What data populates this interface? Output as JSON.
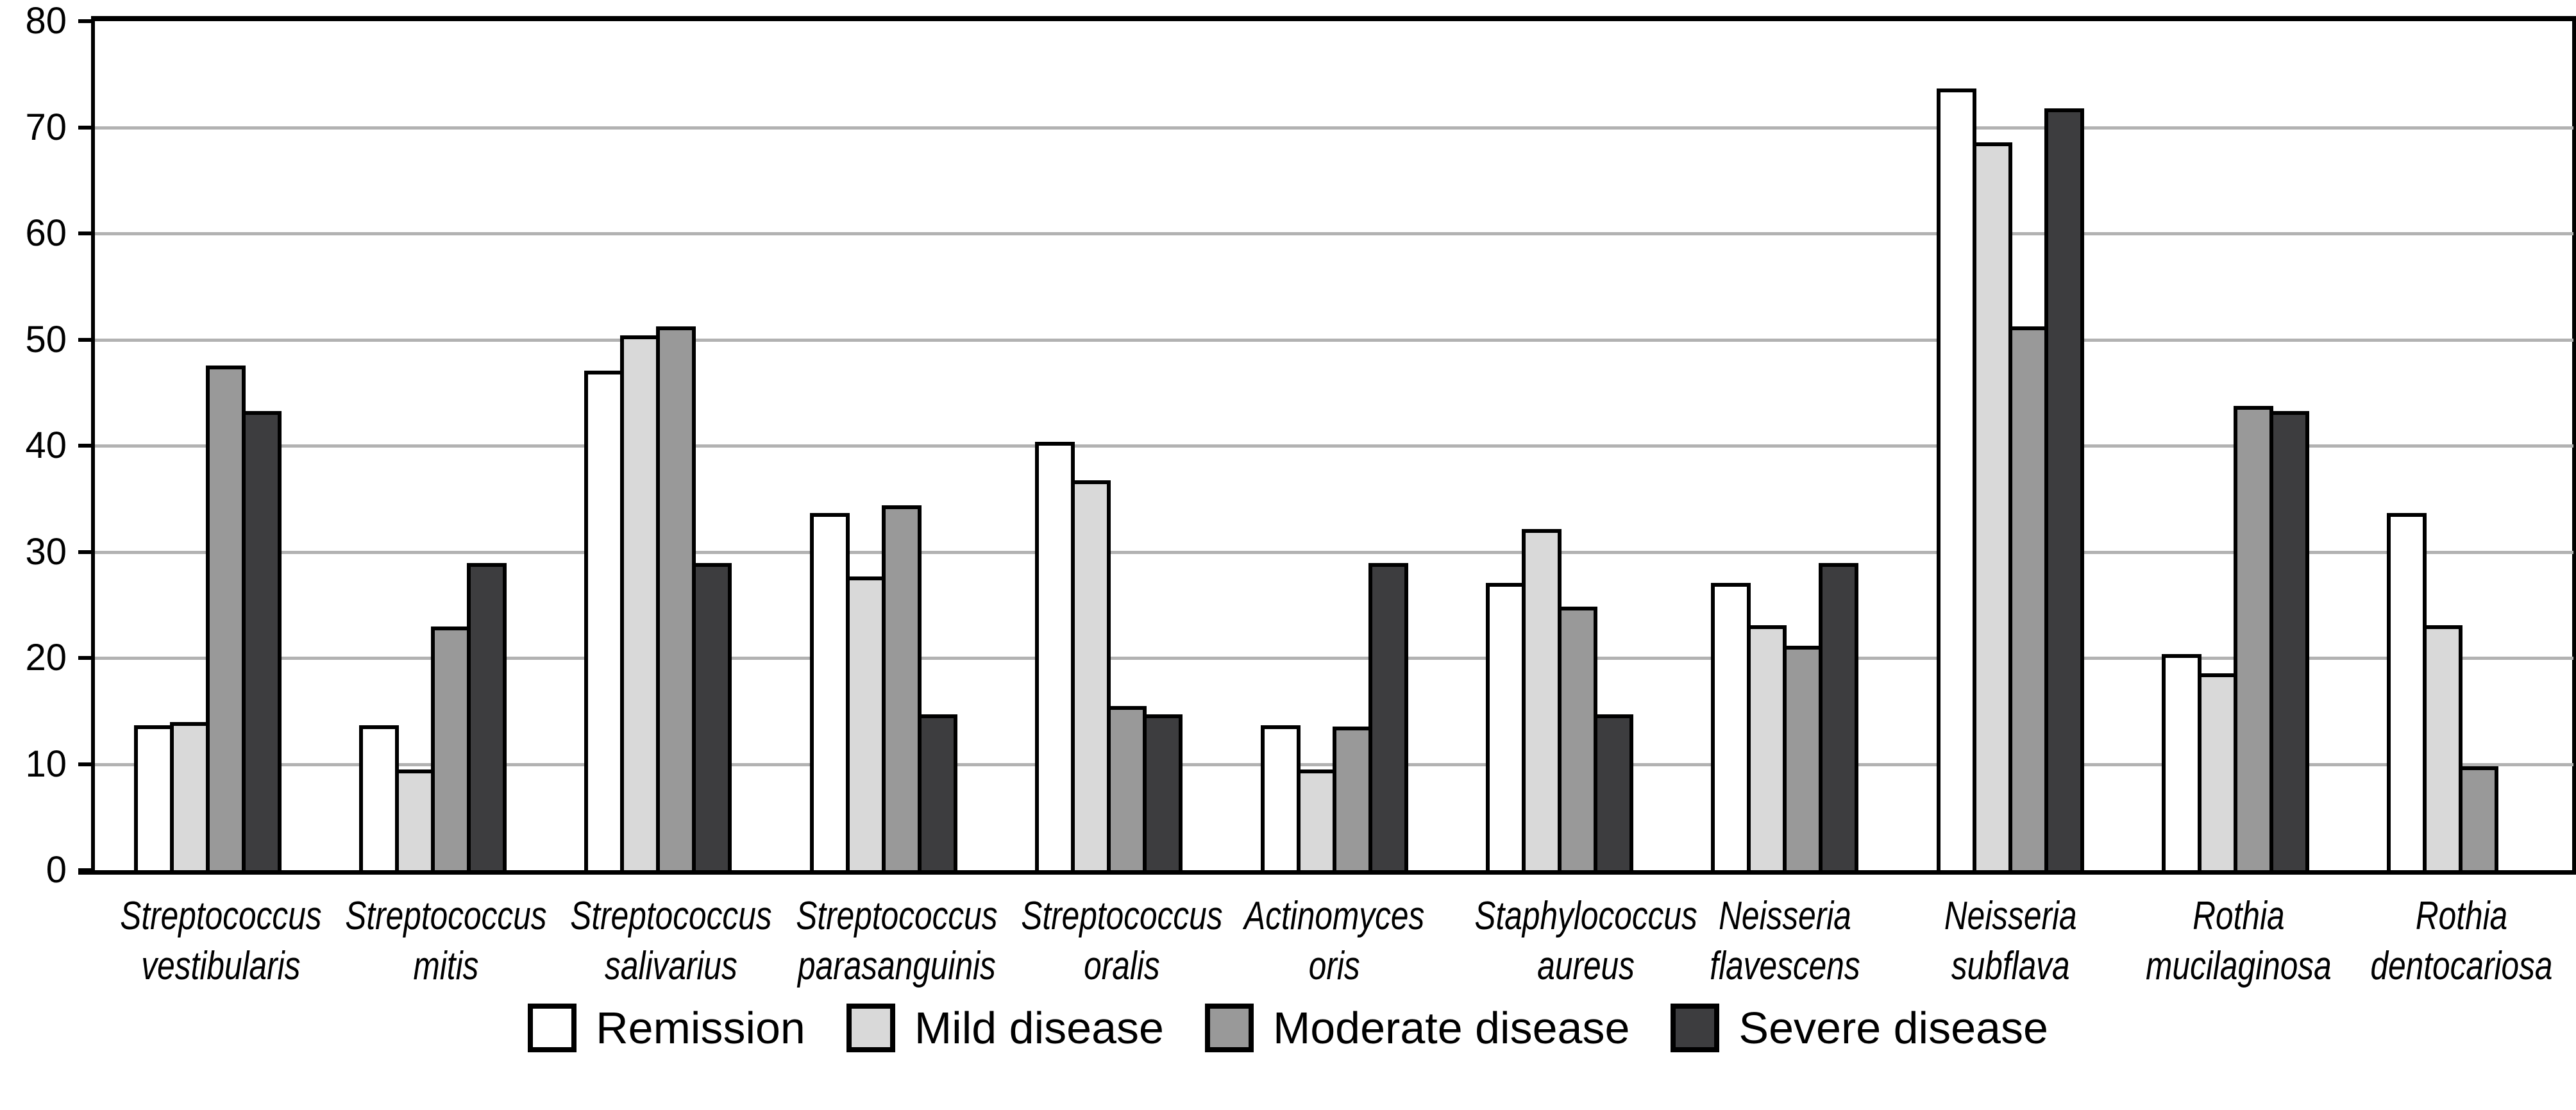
{
  "chart_data": {
    "type": "bar",
    "title": "",
    "xlabel": "",
    "ylabel": "",
    "ylim": [
      0,
      80
    ],
    "yticks": [
      0,
      10,
      20,
      30,
      40,
      50,
      60,
      70,
      80
    ],
    "grid": true,
    "legend_position": "bottom",
    "categories": [
      "Streptococcus vestibularis",
      "Streptococcus mitis",
      "Streptococcus salivarius",
      "Streptococcus parasanguinis",
      "Streptococcus oralis",
      "Actinomyces oris",
      "Staphylococcus aureus",
      "Neisseria flavescens",
      "Neisseria subflava",
      "Rothia mucilaginosa",
      "Rothia dentocariosa"
    ],
    "category_lines": [
      [
        "Streptococcus",
        "vestibularis"
      ],
      [
        "Streptococcus",
        "mitis"
      ],
      [
        "Streptococcus",
        "salivarius"
      ],
      [
        "Streptococcus",
        "parasanguinis"
      ],
      [
        "Streptococcus",
        "oralis"
      ],
      [
        "Actinomyces",
        "oris"
      ],
      [
        "Staphylococcus",
        "aureus"
      ],
      [
        "Neisseria",
        "flavescens"
      ],
      [
        "Neisseria",
        "subflava"
      ],
      [
        "Rothia",
        "mucilaginosa"
      ],
      [
        "Rothia",
        "dentocariosa"
      ]
    ],
    "series": [
      {
        "name": "Remission",
        "color": "#ffffff",
        "values": [
          13.3,
          13.3,
          46.7,
          33.3,
          40.0,
          13.3,
          26.7,
          26.7,
          73.3,
          20.0,
          33.3
        ]
      },
      {
        "name": "Mild disease",
        "color": "#d9d9d9",
        "values": [
          13.6,
          9.1,
          50.0,
          27.3,
          36.4,
          9.1,
          31.8,
          22.7,
          68.2,
          18.2,
          22.7
        ]
      },
      {
        "name": "Moderate disease",
        "color": "#999999",
        "values": [
          47.2,
          22.6,
          50.9,
          34.0,
          15.1,
          13.2,
          24.5,
          20.8,
          50.9,
          43.4,
          9.4
        ]
      },
      {
        "name": "Severe disease",
        "color": "#3d3d3f",
        "values": [
          42.9,
          28.6,
          28.6,
          14.3,
          14.3,
          28.6,
          14.3,
          28.6,
          71.4,
          42.9,
          null
        ]
      }
    ],
    "colors": {
      "axis": "#000000",
      "gridline": "#b2b2b2",
      "background": "#ffffff"
    }
  }
}
